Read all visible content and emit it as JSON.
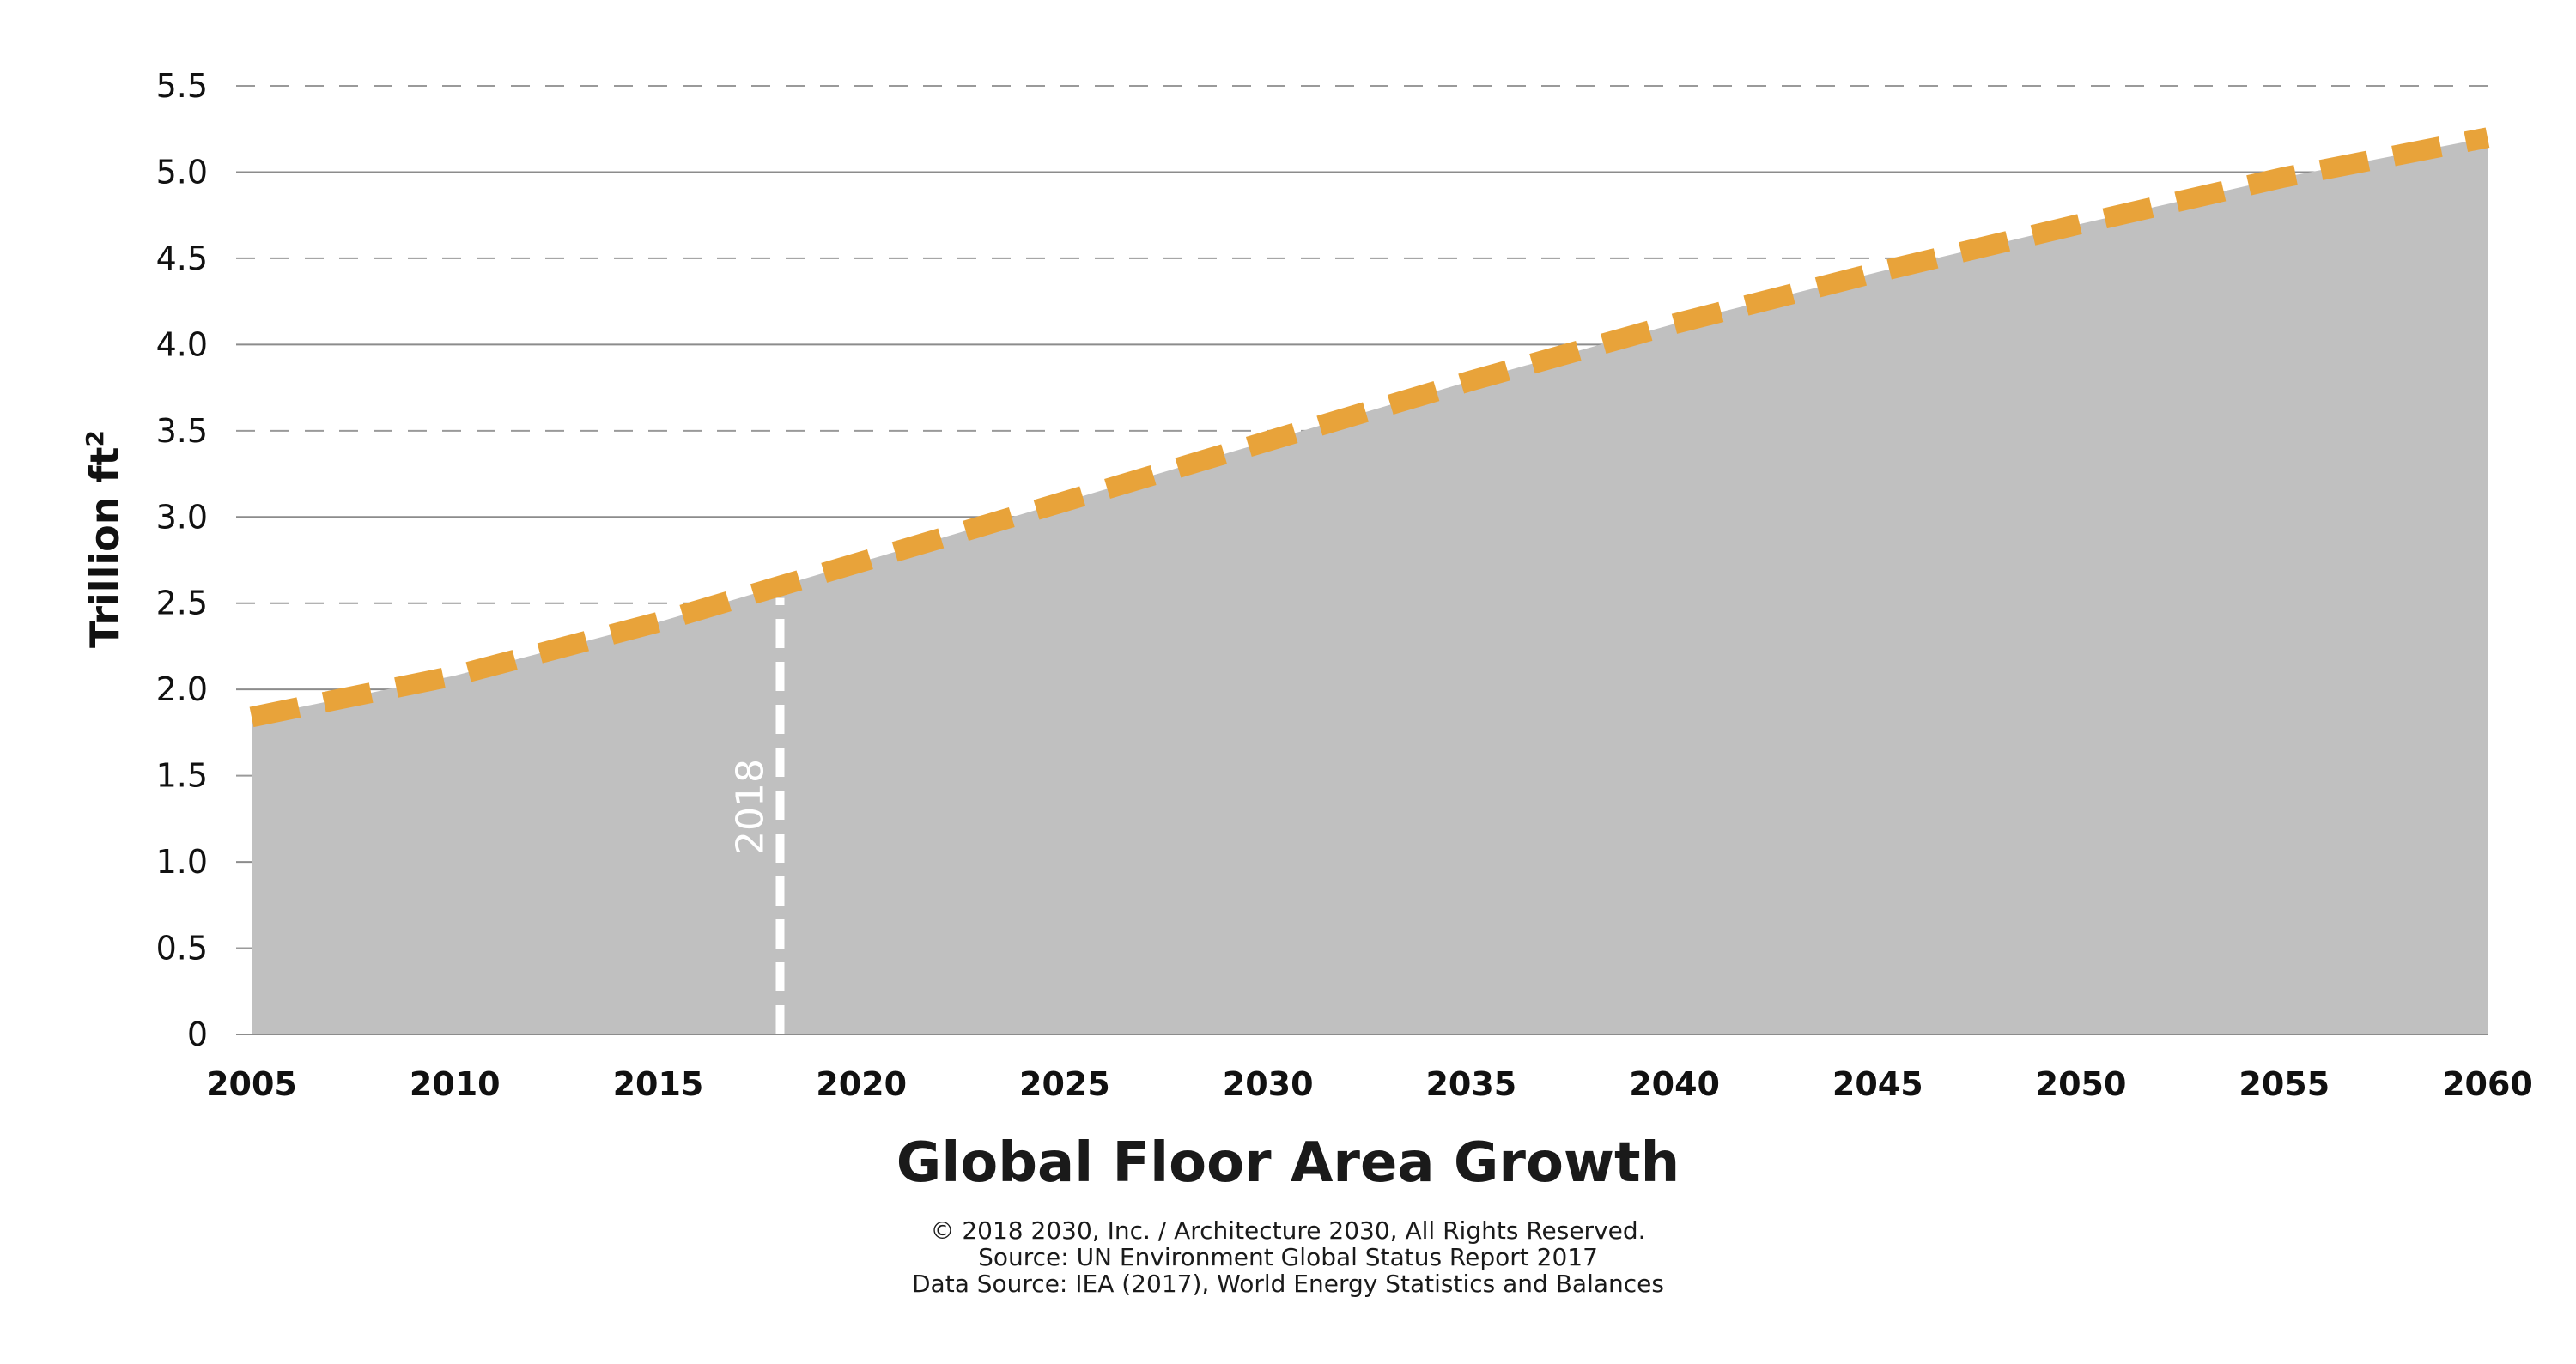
{
  "chart_data": {
    "type": "area",
    "title": "Global Floor Area Growth",
    "ylabel": "Trillion ft",
    "ylabel_superscript": "2",
    "xlabel": "",
    "x": [
      2005,
      2010,
      2015,
      2018,
      2020,
      2025,
      2030,
      2035,
      2040,
      2045,
      2050,
      2055,
      2060
    ],
    "series": [
      {
        "values": [
          1.84,
          2.08,
          2.39,
          2.6,
          2.74,
          3.09,
          3.44,
          3.79,
          4.12,
          4.42,
          4.7,
          4.97,
          5.2
        ]
      }
    ],
    "xlim": [
      2005,
      2060
    ],
    "ylim": [
      0,
      5.5
    ],
    "x_ticks": [
      "2005",
      "2010",
      "2015",
      "2020",
      "2025",
      "2030",
      "2035",
      "2040",
      "2045",
      "2050",
      "2055",
      "2060"
    ],
    "y_ticks": [
      "0",
      "0.5",
      "1.0",
      "1.5",
      "2.0",
      "2.5",
      "3.0",
      "3.5",
      "4.0",
      "4.5",
      "5.0",
      "5.5"
    ],
    "grid": true,
    "marker": {
      "x": 2018,
      "label": "2018"
    },
    "colors": {
      "area": "#c0c0c0",
      "line": "#e8a33a",
      "grid_solid": "#8c8c8c",
      "grid_dashed": "#9a9a9a",
      "marker": "#ffffff"
    }
  },
  "footer": {
    "lines": [
      "© 2018 2030, Inc. / Architecture 2030, All Rights Reserved.",
      "Source: UN Environment Global Status Report 2017",
      "Data Source: IEA (2017), World Energy Statistics and Balances"
    ]
  }
}
